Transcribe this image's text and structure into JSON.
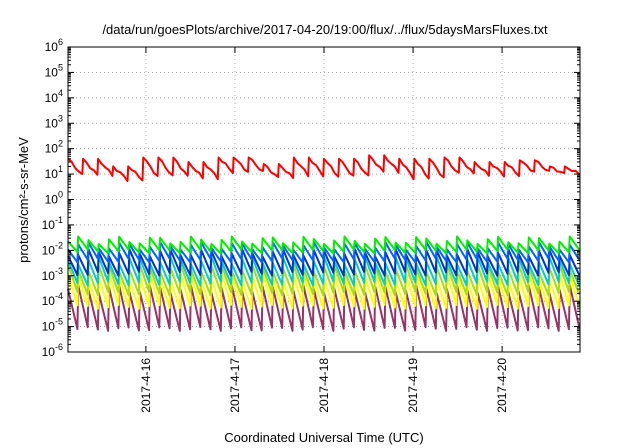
{
  "chart_data": {
    "type": "line",
    "title": "/data/run/goesPlots/archive/2017-04-20/19:00/flux/../flux/5daysMarsFluxes.txt",
    "xlabel": "Coordinated Universal Time (UTC)",
    "ylabel": "protons/cm²-s-sr-MeV",
    "y_scale": "log",
    "ylim_exponents": [
      -6,
      6
    ],
    "y_tick_base": "10",
    "y_tick_exponents": [
      "6",
      "5",
      "4",
      "3",
      "2",
      "1",
      "0",
      "-1",
      "-2",
      "-3",
      "-4",
      "-5",
      "-6"
    ],
    "xlim": [
      "2017-04-15T03:00",
      "2017-04-20T21:00"
    ],
    "x_ticks": [
      "2017-4-16",
      "2017-4-17",
      "2017-4-18",
      "2017-4-19",
      "2017-4-20"
    ],
    "x_tick_dates": [
      "2017-04-16",
      "2017-04-17",
      "2017-04-18",
      "2017-04-19",
      "2017-04-20"
    ],
    "grid": true,
    "legend": "none",
    "series": [
      {
        "color": "#ff0000",
        "style": "decay",
        "cycles": 34,
        "peak": [
          40,
          20,
          45,
          30,
          45,
          25,
          45,
          40,
          55,
          40,
          45,
          30,
          35,
          20
        ],
        "trough": [
          9,
          6,
          8,
          7,
          12,
          7,
          9,
          8,
          12,
          7,
          10,
          9,
          12,
          10
        ]
      },
      {
        "color": "#00ee00",
        "style": "sawtooth",
        "cycles": 50,
        "peak": 0.025,
        "trough": 0.009
      },
      {
        "color": "#0066ff",
        "style": "sawtooth",
        "cycles": 50,
        "peak": 0.015,
        "trough": 0.004
      },
      {
        "color": "#0033cc",
        "style": "sawtooth",
        "cycles": 50,
        "peak": 0.008,
        "trough": 0.0012
      },
      {
        "color": "#00cccc",
        "style": "sawtooth",
        "cycles": 50,
        "peak": 0.004,
        "trough": 0.0005
      },
      {
        "color": "#aadd00",
        "style": "sawtooth",
        "cycles": 50,
        "peak": 0.002,
        "trough": 0.0002
      },
      {
        "color": "#ffff00",
        "style": "sawtooth",
        "cycles": 50,
        "peak": 0.0009,
        "trough": 6e-05
      },
      {
        "color": "#993366",
        "style": "sawtooth",
        "cycles": 50,
        "peak": 0.0003,
        "trough": 8e-06
      }
    ]
  }
}
